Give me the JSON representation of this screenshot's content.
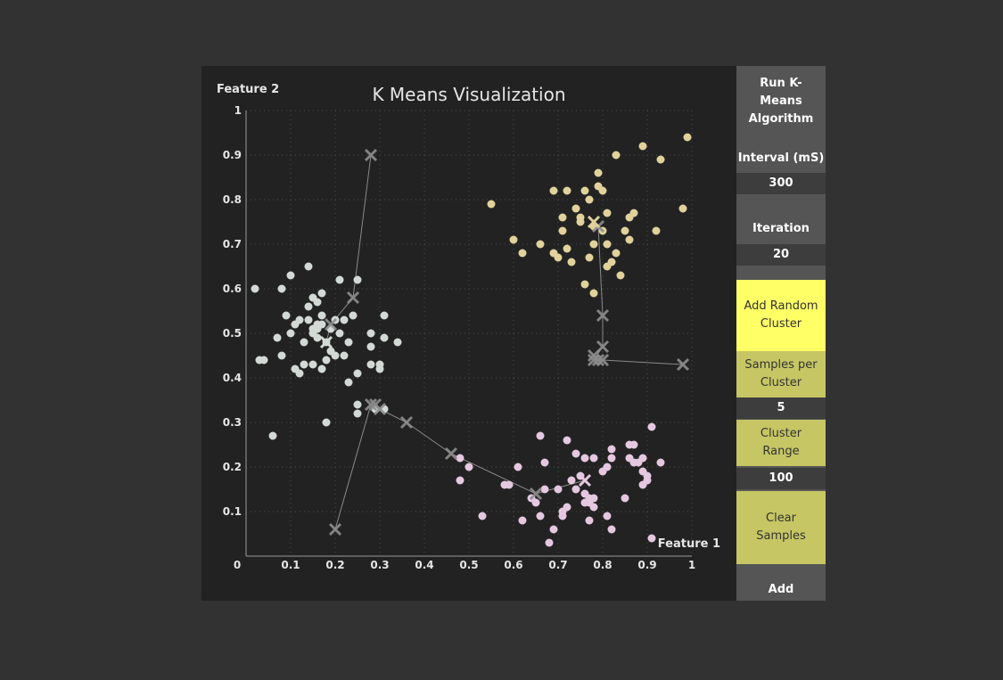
{
  "sidebar": {
    "run_button": "Run K-Means Algorithm",
    "interval_label": "Interval (mS)",
    "interval_value": "300",
    "iteration_label": "Iteration",
    "iteration_value": "20",
    "add_random_button": "Add Random Cluster",
    "samples_label": "Samples per Cluster",
    "samples_value": "5",
    "range_label": "Cluster Range",
    "range_value": "100",
    "clear_button": "Clear Samples",
    "add_button": "Add"
  },
  "colors": {
    "cluster_grey": "#d3dad6",
    "cluster_yellow": "#e0d29a",
    "cluster_pink": "#e5c8e0",
    "centroid_trail": "#8e8e8e",
    "active_yellow": "#ffff66",
    "olive": "#c6c664"
  },
  "chart_data": {
    "type": "scatter",
    "title": "K Means Visualization",
    "xlabel": "Feature 1",
    "ylabel": "Feature 2",
    "xlim": [
      0,
      1
    ],
    "ylim": [
      0,
      1
    ],
    "x_ticks": [
      0,
      0.1,
      0.2,
      0.3,
      0.4,
      0.5,
      0.6,
      0.7,
      0.8,
      0.9,
      1
    ],
    "x_tick_labels": [
      "0",
      "0.1",
      "0.2",
      "0.3",
      "0.4",
      "0.5",
      "0.6",
      "0.7",
      "0.8",
      "0.9",
      "1"
    ],
    "y_ticks": [
      0.1,
      0.2,
      0.3,
      0.4,
      0.5,
      0.6,
      0.7,
      0.8,
      0.9,
      1
    ],
    "y_tick_labels": [
      "0.1",
      "0.2",
      "0.3",
      "0.4",
      "0.5",
      "0.6",
      "0.7",
      "0.8",
      "0.9",
      "1"
    ],
    "grid": true,
    "series": [
      {
        "color": "#d3dad6",
        "points": [
          [
            0.02,
            0.6
          ],
          [
            0.03,
            0.44
          ],
          [
            0.04,
            0.44
          ],
          [
            0.06,
            0.27
          ],
          [
            0.07,
            0.49
          ],
          [
            0.08,
            0.45
          ],
          [
            0.08,
            0.6
          ],
          [
            0.09,
            0.54
          ],
          [
            0.1,
            0.63
          ],
          [
            0.1,
            0.5
          ],
          [
            0.11,
            0.52
          ],
          [
            0.11,
            0.42
          ],
          [
            0.12,
            0.41
          ],
          [
            0.12,
            0.53
          ],
          [
            0.13,
            0.48
          ],
          [
            0.13,
            0.43
          ],
          [
            0.14,
            0.53
          ],
          [
            0.14,
            0.56
          ],
          [
            0.14,
            0.65
          ],
          [
            0.15,
            0.43
          ],
          [
            0.15,
            0.5
          ],
          [
            0.15,
            0.58
          ],
          [
            0.16,
            0.51
          ],
          [
            0.16,
            0.49
          ],
          [
            0.16,
            0.57
          ],
          [
            0.17,
            0.42
          ],
          [
            0.17,
            0.52
          ],
          [
            0.17,
            0.54
          ],
          [
            0.17,
            0.59
          ],
          [
            0.18,
            0.3
          ],
          [
            0.18,
            0.48
          ],
          [
            0.18,
            0.44
          ],
          [
            0.19,
            0.46
          ],
          [
            0.19,
            0.51
          ],
          [
            0.2,
            0.53
          ],
          [
            0.2,
            0.45
          ],
          [
            0.21,
            0.5
          ],
          [
            0.21,
            0.62
          ],
          [
            0.22,
            0.45
          ],
          [
            0.22,
            0.53
          ],
          [
            0.23,
            0.39
          ],
          [
            0.23,
            0.48
          ],
          [
            0.24,
            0.54
          ],
          [
            0.25,
            0.41
          ],
          [
            0.25,
            0.34
          ],
          [
            0.25,
            0.32
          ],
          [
            0.25,
            0.62
          ],
          [
            0.28,
            0.47
          ],
          [
            0.28,
            0.5
          ],
          [
            0.28,
            0.43
          ],
          [
            0.29,
            0.33
          ],
          [
            0.3,
            0.42
          ],
          [
            0.3,
            0.43
          ],
          [
            0.31,
            0.33
          ],
          [
            0.31,
            0.54
          ],
          [
            0.31,
            0.49
          ],
          [
            0.34,
            0.48
          ],
          [
            0.16,
            0.52
          ],
          [
            0.15,
            0.51
          ]
        ],
        "centroid": [
          0.18,
          0.48
        ]
      },
      {
        "color": "#e0d29a",
        "points": [
          [
            0.55,
            0.79
          ],
          [
            0.6,
            0.71
          ],
          [
            0.62,
            0.68
          ],
          [
            0.66,
            0.7
          ],
          [
            0.69,
            0.68
          ],
          [
            0.69,
            0.82
          ],
          [
            0.7,
            0.67
          ],
          [
            0.71,
            0.73
          ],
          [
            0.71,
            0.76
          ],
          [
            0.72,
            0.82
          ],
          [
            0.72,
            0.69
          ],
          [
            0.73,
            0.66
          ],
          [
            0.74,
            0.78
          ],
          [
            0.75,
            0.75
          ],
          [
            0.75,
            0.76
          ],
          [
            0.76,
            0.61
          ],
          [
            0.76,
            0.82
          ],
          [
            0.77,
            0.67
          ],
          [
            0.77,
            0.8
          ],
          [
            0.78,
            0.59
          ],
          [
            0.78,
            0.7
          ],
          [
            0.78,
            0.74
          ],
          [
            0.79,
            0.83
          ],
          [
            0.79,
            0.86
          ],
          [
            0.8,
            0.73
          ],
          [
            0.8,
            0.82
          ],
          [
            0.81,
            0.7
          ],
          [
            0.81,
            0.77
          ],
          [
            0.81,
            0.65
          ],
          [
            0.82,
            0.66
          ],
          [
            0.83,
            0.9
          ],
          [
            0.83,
            0.68
          ],
          [
            0.84,
            0.63
          ],
          [
            0.85,
            0.73
          ],
          [
            0.86,
            0.71
          ],
          [
            0.86,
            0.76
          ],
          [
            0.87,
            0.77
          ],
          [
            0.89,
            0.92
          ],
          [
            0.92,
            0.73
          ],
          [
            0.93,
            0.89
          ],
          [
            0.98,
            0.78
          ],
          [
            0.99,
            0.94
          ]
        ],
        "centroid": [
          0.78,
          0.75
        ]
      },
      {
        "color": "#e5c8e0",
        "points": [
          [
            0.48,
            0.22
          ],
          [
            0.5,
            0.2
          ],
          [
            0.48,
            0.17
          ],
          [
            0.53,
            0.09
          ],
          [
            0.58,
            0.16
          ],
          [
            0.59,
            0.16
          ],
          [
            0.61,
            0.2
          ],
          [
            0.62,
            0.08
          ],
          [
            0.64,
            0.13
          ],
          [
            0.65,
            0.12
          ],
          [
            0.66,
            0.27
          ],
          [
            0.66,
            0.09
          ],
          [
            0.67,
            0.15
          ],
          [
            0.67,
            0.21
          ],
          [
            0.68,
            0.03
          ],
          [
            0.69,
            0.06
          ],
          [
            0.7,
            0.15
          ],
          [
            0.71,
            0.09
          ],
          [
            0.71,
            0.1
          ],
          [
            0.72,
            0.11
          ],
          [
            0.72,
            0.26
          ],
          [
            0.73,
            0.17
          ],
          [
            0.74,
            0.23
          ],
          [
            0.74,
            0.15
          ],
          [
            0.75,
            0.18
          ],
          [
            0.76,
            0.12
          ],
          [
            0.76,
            0.14
          ],
          [
            0.76,
            0.22
          ],
          [
            0.77,
            0.13
          ],
          [
            0.77,
            0.08
          ],
          [
            0.77,
            0.12
          ],
          [
            0.78,
            0.11
          ],
          [
            0.78,
            0.13
          ],
          [
            0.78,
            0.22
          ],
          [
            0.8,
            0.19
          ],
          [
            0.81,
            0.09
          ],
          [
            0.81,
            0.2
          ],
          [
            0.82,
            0.24
          ],
          [
            0.82,
            0.22
          ],
          [
            0.82,
            0.06
          ],
          [
            0.85,
            0.13
          ],
          [
            0.86,
            0.25
          ],
          [
            0.86,
            0.22
          ],
          [
            0.87,
            0.21
          ],
          [
            0.87,
            0.25
          ],
          [
            0.88,
            0.21
          ],
          [
            0.89,
            0.16
          ],
          [
            0.89,
            0.22
          ],
          [
            0.89,
            0.19
          ],
          [
            0.9,
            0.17
          ],
          [
            0.9,
            0.18
          ],
          [
            0.91,
            0.04
          ],
          [
            0.91,
            0.29
          ],
          [
            0.93,
            0.21
          ]
        ],
        "centroid": [
          0.76,
          0.17
        ]
      }
    ],
    "centroid_paths": [
      [
        [
          0.28,
          0.9
        ],
        [
          0.24,
          0.58
        ],
        [
          0.19,
          0.52
        ],
        [
          0.18,
          0.48
        ]
      ],
      [
        [
          0.98,
          0.43
        ],
        [
          0.8,
          0.44
        ],
        [
          0.78,
          0.44
        ],
        [
          0.8,
          0.47
        ],
        [
          0.8,
          0.54
        ],
        [
          0.79,
          0.74
        ],
        [
          0.78,
          0.75
        ]
      ],
      [
        [
          0.2,
          0.06
        ],
        [
          0.28,
          0.34
        ],
        [
          0.3,
          0.33
        ],
        [
          0.36,
          0.3
        ],
        [
          0.46,
          0.23
        ],
        [
          0.65,
          0.14
        ],
        [
          0.76,
          0.17
        ]
      ]
    ],
    "centroid_trail_extra": [
      [
        0.29,
        0.34
      ],
      [
        0.79,
        0.44
      ],
      [
        0.78,
        0.45
      ]
    ]
  }
}
